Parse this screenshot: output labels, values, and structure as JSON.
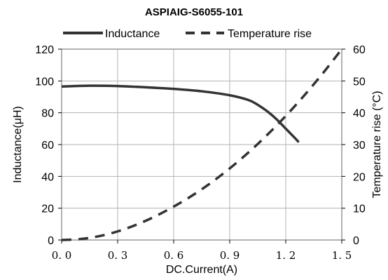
{
  "chart_data": {
    "type": "line",
    "title": "ASPIAIG-S6055-101",
    "xlabel": "DC.Current(A)",
    "ylabel_left": "Inductance(μH)",
    "ylabel_right": "Temperature rise (°C)",
    "xlim": [
      0,
      1.5
    ],
    "ylim_left": [
      0,
      120
    ],
    "ylim_right": [
      0,
      60
    ],
    "x_ticks": [
      "0. 0",
      "0. 3",
      "0. 6",
      "0. 9",
      "1. 2",
      "1. 5"
    ],
    "y_ticks_left": [
      "0",
      "20",
      "40",
      "60",
      "80",
      "100",
      "120"
    ],
    "y_ticks_right": [
      "0",
      "10",
      "20",
      "30",
      "40",
      "50",
      "60"
    ],
    "grid": true,
    "legend_position": "top",
    "series": [
      {
        "name": "Inductance",
        "axis": "left",
        "style": "solid",
        "color": "#333333",
        "x": [
          0.0,
          0.15,
          0.3,
          0.45,
          0.6,
          0.75,
          0.9,
          1.0,
          1.05,
          1.1,
          1.15,
          1.2,
          1.25,
          1.27
        ],
        "y": [
          96.5,
          97,
          96.8,
          96,
          95,
          93.5,
          91,
          88,
          85,
          81,
          76,
          70,
          64,
          61.5
        ]
      },
      {
        "name": "Temperature rise",
        "axis": "right",
        "style": "dashed",
        "color": "#333333",
        "x": [
          0.0,
          0.1,
          0.2,
          0.3,
          0.4,
          0.5,
          0.6,
          0.7,
          0.8,
          0.9,
          1.0,
          1.1,
          1.2,
          1.3,
          1.4,
          1.5
        ],
        "y": [
          0,
          0.3,
          1.2,
          2.7,
          4.8,
          7.4,
          10.5,
          14,
          18,
          22.5,
          27.5,
          33,
          39,
          45.5,
          52.5,
          60
        ]
      }
    ]
  }
}
